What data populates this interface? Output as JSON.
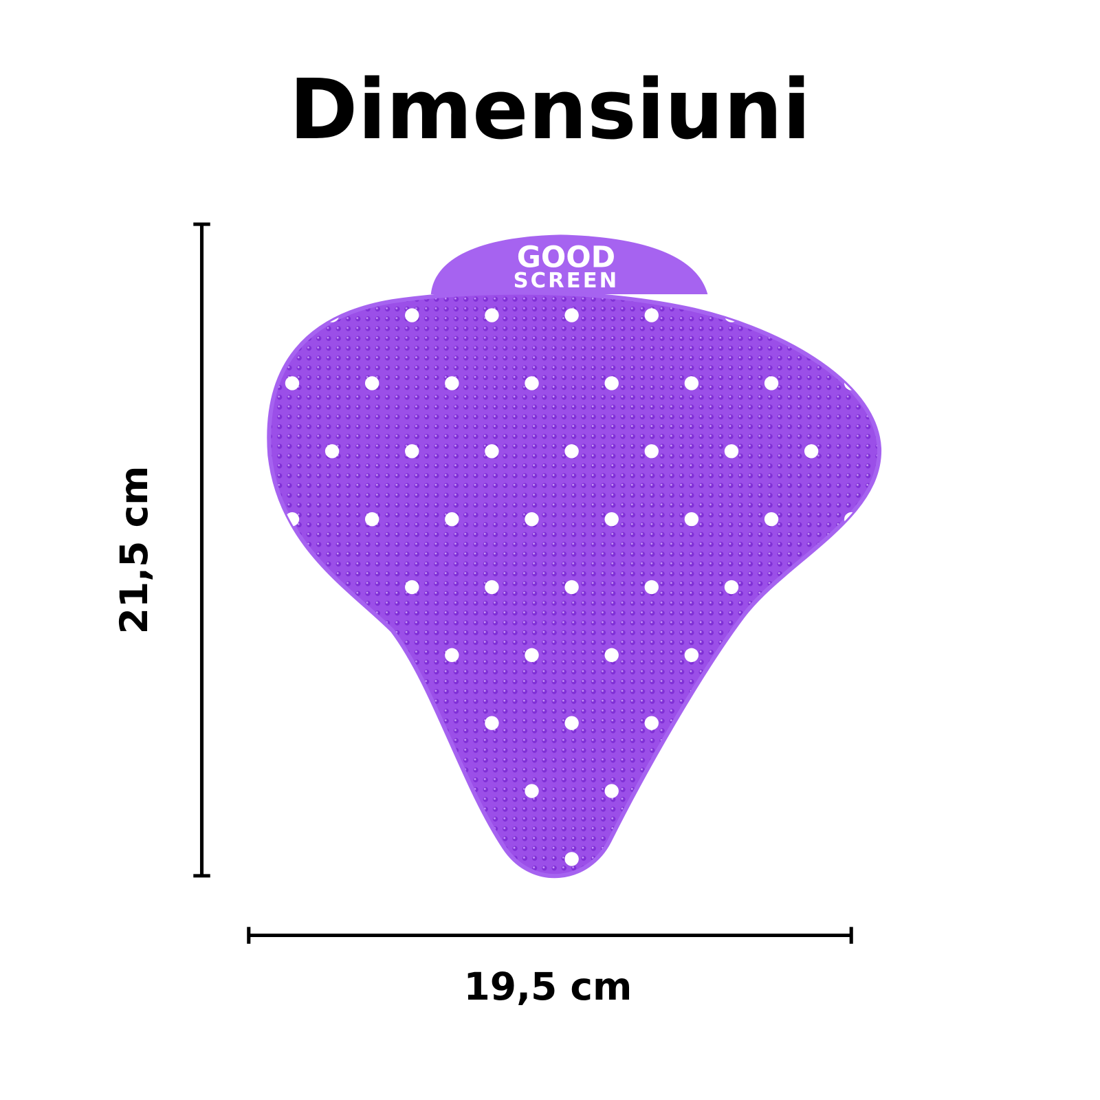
{
  "title": "Dimensiuni",
  "height_label": "21,5 cm",
  "width_label": "19,5 cm",
  "logo": {
    "line1": "GOOD",
    "line2": "SCREEN"
  }
}
